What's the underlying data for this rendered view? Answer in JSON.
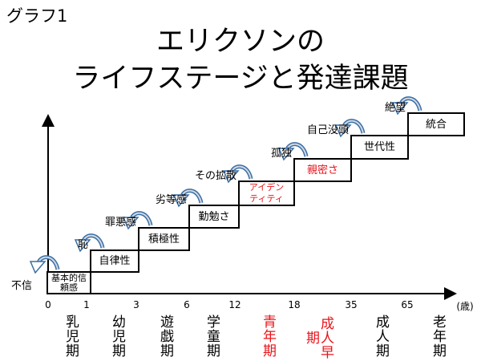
{
  "graph_label": "グラフ1",
  "title_line1": "エリクソンの",
  "title_line2": "ライフステージと発達課題",
  "colors": {
    "highlight": "#e8141b",
    "arrow": "#3a6ea5",
    "text": "#000000"
  },
  "stages": [
    {
      "virtue": "基本的信頼感",
      "crisis": "不信",
      "age_tick": "0",
      "stage": "乳児期",
      "highlight": false
    },
    {
      "virtue": "自律性",
      "crisis": "恥",
      "age_tick": "1",
      "stage": "幼児期",
      "highlight": false
    },
    {
      "virtue": "積極性",
      "crisis": "罪悪感",
      "age_tick": "3",
      "stage": "遊戯期",
      "highlight": false
    },
    {
      "virtue": "勤勉さ",
      "crisis": "劣等感",
      "age_tick": "6",
      "stage": "学童期",
      "highlight": false
    },
    {
      "virtue": "アイデンティティ",
      "crisis": "その拡散",
      "age_tick": "12",
      "stage": "青年期",
      "highlight": true
    },
    {
      "virtue": "親密さ",
      "crisis": "孤独",
      "age_tick": "18",
      "stage": "成人早期",
      "highlight": true
    },
    {
      "virtue": "世代性",
      "crisis": "自己没頭",
      "age_tick": "35",
      "stage": "成人期",
      "highlight": false
    },
    {
      "virtue": "統合",
      "crisis": "絶望",
      "age_tick": "65",
      "stage": "老年期",
      "highlight": false
    }
  ],
  "age_unit": "(歳)"
}
